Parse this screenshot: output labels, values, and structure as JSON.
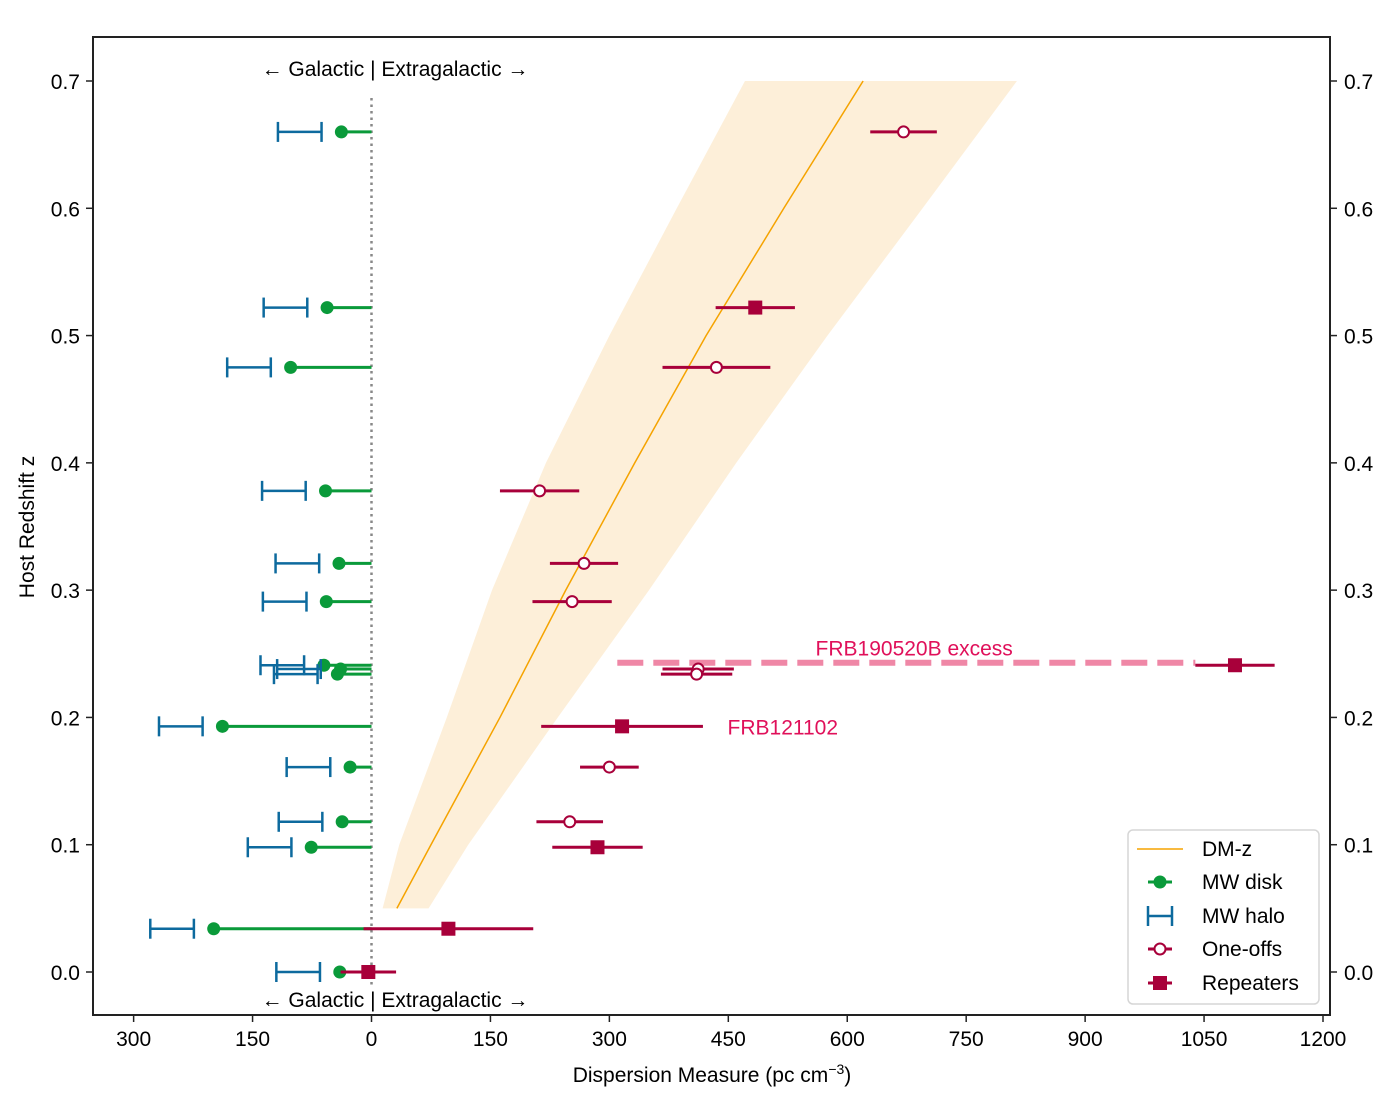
{
  "chart_data": {
    "type": "scatter",
    "title": "",
    "xlabel": "Dispersion Measure (pc cm",
    "xlabel_sup": "−3",
    "xlabel_end": ")",
    "ylabel": "Host Redshift z",
    "xlim": [
      -350,
      1210
    ],
    "ylim": [
      -0.035,
      0.735
    ],
    "x_ticks": [
      -300,
      -150,
      0,
      150,
      300,
      450,
      600,
      750,
      900,
      1050,
      1200
    ],
    "x_tick_labels": [
      "300",
      "150",
      "0",
      "150",
      "300",
      "450",
      "600",
      "750",
      "900",
      "1050",
      "1200"
    ],
    "y_ticks": [
      0.0,
      0.1,
      0.2,
      0.3,
      0.4,
      0.5,
      0.6,
      0.7
    ],
    "y_tick_labels": [
      "0.0",
      "0.1",
      "0.2",
      "0.3",
      "0.4",
      "0.5",
      "0.6",
      "0.7"
    ],
    "grid": false,
    "legend_position": "bottom-right",
    "divider_label_top": "← Galactic | Extragalactic →",
    "divider_label_bottom": "← Galactic | Extragalactic →",
    "colors": {
      "dmz_line": "#f5a300",
      "dmz_band": "#fdefd9",
      "mw_disk": "#0a9a3a",
      "mw_halo": "#0d6a9e",
      "frb": "#a8003a",
      "excess": "#ef87a6",
      "annotation": "#e0105a",
      "divider": "#888888"
    },
    "dmz_band": {
      "z": [
        0.05,
        0.1,
        0.2,
        0.3,
        0.4,
        0.5,
        0.6,
        0.7
      ],
      "center": [
        32,
        75,
        162,
        245,
        332,
        422,
        520,
        620
      ],
      "lower": [
        14,
        35,
        95,
        152,
        220,
        300,
        385,
        471
      ],
      "upper": [
        72,
        122,
        235,
        350,
        460,
        575,
        695,
        814
      ]
    },
    "mw_halo_range": [
      25,
      80
    ],
    "frbs": [
      {
        "z": 0.66,
        "dm": 671,
        "dm_err": 42,
        "type": "one-off",
        "mw_disk": 38
      },
      {
        "z": 0.522,
        "dm": 484,
        "dm_err": 50,
        "type": "repeater",
        "mw_disk": 56
      },
      {
        "z": 0.475,
        "dm": 435,
        "dm_err": 68,
        "type": "one-off",
        "mw_disk": 102
      },
      {
        "z": 0.378,
        "dm": 212,
        "dm_err": 50,
        "type": "one-off",
        "mw_disk": 58
      },
      {
        "z": 0.321,
        "dm": 268,
        "dm_err": 43,
        "type": "one-off",
        "mw_disk": 41
      },
      {
        "z": 0.291,
        "dm": 253,
        "dm_err": 50,
        "type": "one-off",
        "mw_disk": 57
      },
      {
        "z": 0.241,
        "dm": 1089,
        "dm_err": 50,
        "type": "repeater",
        "mw_disk": 60
      },
      {
        "z": 0.238,
        "dm": 412,
        "dm_err": 45,
        "type": "one-off",
        "mw_disk": 39
      },
      {
        "z": 0.234,
        "dm": 410,
        "dm_err": 45,
        "type": "one-off",
        "mw_disk": 43
      },
      {
        "z": 0.193,
        "dm": 316,
        "dm_err": 102,
        "type": "repeater",
        "mw_disk": 188
      },
      {
        "z": 0.161,
        "dm": 300,
        "dm_err": 37,
        "type": "one-off",
        "mw_disk": 27
      },
      {
        "z": 0.118,
        "dm": 250,
        "dm_err": 42,
        "type": "one-off",
        "mw_disk": 37
      },
      {
        "z": 0.098,
        "dm": 285,
        "dm_err": 57,
        "type": "repeater",
        "mw_disk": 76
      },
      {
        "z": 0.034,
        "dm": 97,
        "dm_err": 107,
        "type": "repeater",
        "mw_disk": 199
      },
      {
        "z": 0.0,
        "dm": -4,
        "dm_err": 35,
        "type": "repeater",
        "mw_disk": 40
      }
    ],
    "excess_line": {
      "z": 0.243,
      "dm_start": 310,
      "dm_end": 1039
    },
    "annotations": [
      {
        "text": "FRB190520B excess",
        "dm": 560,
        "z": 0.255
      },
      {
        "text": "FRB121102",
        "dm": 449,
        "z": 0.193
      }
    ],
    "legend": [
      "DM-z",
      "MW disk",
      "MW halo",
      "One-offs",
      "Repeaters"
    ]
  }
}
